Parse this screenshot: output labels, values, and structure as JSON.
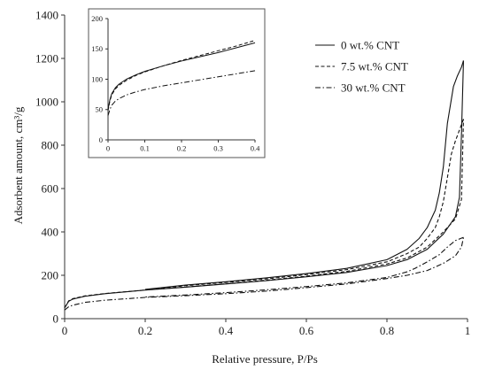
{
  "chart_data": [
    {
      "type": "line",
      "xlabel": "Relative pressure, P/Ps",
      "ylabel": "Adsorbent amount, cm³/g",
      "xlim": [
        0,
        1
      ],
      "ylim": [
        0,
        1400
      ],
      "x_ticks": [
        0,
        0.2,
        0.4,
        0.6,
        0.8,
        1
      ],
      "x_tick_labels": [
        "0",
        "0.2",
        "0.4",
        "0.6",
        "0.8",
        "1"
      ],
      "y_ticks": [
        0,
        200,
        400,
        600,
        800,
        1000,
        1200,
        1400
      ],
      "y_tick_labels": [
        "0",
        "200",
        "400",
        "600",
        "800",
        "1000",
        "1200",
        "1400"
      ],
      "legend": {
        "placement": "top-right"
      },
      "grid": false,
      "series": [
        {
          "name": "0 wt.% CNT",
          "style": "solid",
          "adsorption": [
            [
              0.0,
              50
            ],
            [
              0.01,
              80
            ],
            [
              0.02,
              90
            ],
            [
              0.05,
              103
            ],
            [
              0.1,
              115
            ],
            [
              0.2,
              132
            ],
            [
              0.3,
              145
            ],
            [
              0.4,
              160
            ],
            [
              0.5,
              175
            ],
            [
              0.6,
              193
            ],
            [
              0.7,
              213
            ],
            [
              0.8,
              245
            ],
            [
              0.85,
              272
            ],
            [
              0.9,
              320
            ],
            [
              0.94,
              390
            ],
            [
              0.97,
              470
            ],
            [
              0.98,
              560
            ],
            [
              0.985,
              850
            ],
            [
              0.99,
              1190
            ]
          ],
          "desorption": [
            [
              0.99,
              1190
            ],
            [
              0.985,
              1160
            ],
            [
              0.975,
              1120
            ],
            [
              0.965,
              1070
            ],
            [
              0.95,
              900
            ],
            [
              0.94,
              700
            ],
            [
              0.93,
              580
            ],
            [
              0.92,
              500
            ],
            [
              0.9,
              420
            ],
            [
              0.88,
              370
            ],
            [
              0.85,
              320
            ],
            [
              0.8,
              272
            ],
            [
              0.7,
              232
            ],
            [
              0.6,
              208
            ],
            [
              0.5,
              188
            ],
            [
              0.4,
              170
            ],
            [
              0.3,
              155
            ],
            [
              0.2,
              135
            ]
          ]
        },
        {
          "name": "7.5 wt.% CNT",
          "style": "dashed",
          "adsorption": [
            [
              0.0,
              50
            ],
            [
              0.01,
              82
            ],
            [
              0.02,
              92
            ],
            [
              0.05,
              105
            ],
            [
              0.1,
              116
            ],
            [
              0.2,
              132
            ],
            [
              0.3,
              146
            ],
            [
              0.4,
              161
            ],
            [
              0.5,
              177
            ],
            [
              0.6,
              196
            ],
            [
              0.7,
              218
            ],
            [
              0.8,
              252
            ],
            [
              0.85,
              280
            ],
            [
              0.9,
              330
            ],
            [
              0.94,
              400
            ],
            [
              0.97,
              460
            ],
            [
              0.985,
              550
            ],
            [
              0.99,
              920
            ]
          ],
          "desorption": [
            [
              0.99,
              920
            ],
            [
              0.98,
              870
            ],
            [
              0.97,
              820
            ],
            [
              0.96,
              760
            ],
            [
              0.95,
              650
            ],
            [
              0.94,
              540
            ],
            [
              0.93,
              470
            ],
            [
              0.92,
              420
            ],
            [
              0.9,
              370
            ],
            [
              0.88,
              330
            ],
            [
              0.85,
              300
            ],
            [
              0.8,
              262
            ],
            [
              0.7,
              226
            ],
            [
              0.6,
              203
            ],
            [
              0.5,
              183
            ],
            [
              0.4,
              167
            ],
            [
              0.3,
              152
            ],
            [
              0.2,
              134
            ]
          ]
        },
        {
          "name": "30 wt.% CNT",
          "style": "dash-dot",
          "adsorption": [
            [
              0.0,
              40
            ],
            [
              0.01,
              55
            ],
            [
              0.02,
              62
            ],
            [
              0.05,
              75
            ],
            [
              0.1,
              85
            ],
            [
              0.2,
              98
            ],
            [
              0.3,
              106
            ],
            [
              0.4,
              115
            ],
            [
              0.5,
              127
            ],
            [
              0.6,
              143
            ],
            [
              0.7,
              160
            ],
            [
              0.8,
              185
            ],
            [
              0.85,
              200
            ],
            [
              0.9,
              222
            ],
            [
              0.94,
              255
            ],
            [
              0.97,
              290
            ],
            [
              0.985,
              330
            ],
            [
              0.99,
              375
            ]
          ],
          "desorption": [
            [
              0.99,
              375
            ],
            [
              0.97,
              360
            ],
            [
              0.95,
              330
            ],
            [
              0.93,
              295
            ],
            [
              0.9,
              262
            ],
            [
              0.87,
              232
            ],
            [
              0.85,
              216
            ],
            [
              0.8,
              190
            ],
            [
              0.7,
              165
            ],
            [
              0.6,
              148
            ],
            [
              0.5,
              133
            ],
            [
              0.4,
              120
            ],
            [
              0.3,
              109
            ],
            [
              0.2,
              100
            ]
          ]
        }
      ]
    },
    {
      "type": "line",
      "placement": "inset-top-left",
      "xlim": [
        0,
        0.4
      ],
      "ylim": [
        0,
        200
      ],
      "x_ticks": [
        0,
        0.1,
        0.2,
        0.3,
        0.4
      ],
      "x_tick_labels": [
        "0",
        "0.1",
        "0.2",
        "0.3",
        "0.4"
      ],
      "y_ticks": [
        0,
        50,
        100,
        150,
        200
      ],
      "y_tick_labels": [
        "0",
        "50",
        "100",
        "150",
        "200"
      ],
      "grid": false,
      "series": [
        {
          "style": "solid",
          "values": [
            [
              0.0,
              50
            ],
            [
              0.005,
              66
            ],
            [
              0.01,
              76
            ],
            [
              0.02,
              86
            ],
            [
              0.03,
              92
            ],
            [
              0.05,
              100
            ],
            [
              0.075,
              107
            ],
            [
              0.1,
              113
            ],
            [
              0.15,
              122
            ],
            [
              0.2,
              130
            ],
            [
              0.25,
              137
            ],
            [
              0.3,
              144
            ],
            [
              0.35,
              152
            ],
            [
              0.4,
              160
            ]
          ]
        },
        {
          "style": "dashed",
          "values": [
            [
              0.0,
              48
            ],
            [
              0.005,
              64
            ],
            [
              0.01,
              74
            ],
            [
              0.02,
              84
            ],
            [
              0.03,
              90
            ],
            [
              0.05,
              98
            ],
            [
              0.075,
              106
            ],
            [
              0.1,
              112
            ],
            [
              0.15,
              122
            ],
            [
              0.2,
              131
            ],
            [
              0.25,
              139
            ],
            [
              0.3,
              147
            ],
            [
              0.35,
              155
            ],
            [
              0.4,
              164
            ]
          ]
        },
        {
          "style": "dash-dot",
          "values": [
            [
              0.0,
              40
            ],
            [
              0.005,
              50
            ],
            [
              0.01,
              57
            ],
            [
              0.02,
              64
            ],
            [
              0.03,
              68
            ],
            [
              0.05,
              74
            ],
            [
              0.075,
              79
            ],
            [
              0.1,
              83
            ],
            [
              0.15,
              89
            ],
            [
              0.2,
              94
            ],
            [
              0.25,
              99
            ],
            [
              0.3,
              104
            ],
            [
              0.35,
              109
            ],
            [
              0.4,
              114
            ]
          ]
        }
      ]
    }
  ]
}
